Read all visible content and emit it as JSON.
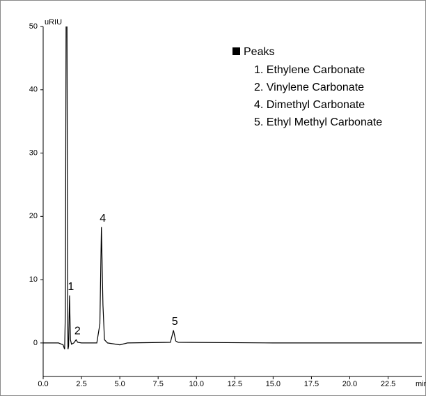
{
  "chart_data": {
    "type": "line",
    "y_label": "uRIU",
    "x_label": "min",
    "x": [
      0,
      1.0,
      1.3,
      1.4,
      1.45,
      1.5,
      1.55,
      1.6,
      1.62,
      1.66,
      1.72,
      1.78,
      1.85,
      2.0,
      2.15,
      2.25,
      2.5,
      3.5,
      3.7,
      3.8,
      3.9,
      4.0,
      4.2,
      5.0,
      5.5,
      8.3,
      8.5,
      8.65,
      8.8,
      12.0,
      15.0,
      20.0,
      24.7
    ],
    "series": [
      {
        "color": "#000000",
        "values": [
          0,
          0,
          -0.3,
          -1,
          5,
          55,
          55,
          5,
          -1,
          -0.5,
          7.5,
          0.5,
          -0.2,
          0,
          0.5,
          0.1,
          0,
          0,
          3,
          18.3,
          6,
          0.5,
          0,
          -0.3,
          0,
          0.1,
          2,
          0.3,
          0.1,
          0.05,
          0,
          0,
          0
        ]
      }
    ],
    "peaks": {
      "x": [
        1.72,
        2.15,
        3.8,
        8.5
      ],
      "labels": [
        "1",
        "2",
        "4",
        "5"
      ]
    },
    "legend": {
      "title": "Peaks",
      "items": [
        "1. Ethylene Carbonate",
        "2. Vinylene Carbonate",
        "4. Dimethyl Carbonate",
        "5. Ethyl Methyl Carbonate"
      ]
    },
    "xlim": [
      0,
      24.7
    ],
    "ylim": [
      -5.3,
      50
    ],
    "xticks": [
      {
        "value": 0,
        "label": "0.0"
      },
      {
        "value": 2.5,
        "label": "2.5"
      },
      {
        "value": 5,
        "label": "5.0"
      },
      {
        "value": 7.5,
        "label": "7.5"
      },
      {
        "value": 10,
        "label": "10.0"
      },
      {
        "value": 12.5,
        "label": "12.5"
      },
      {
        "value": 15,
        "label": "15.0"
      },
      {
        "value": 17.5,
        "label": "17.5"
      },
      {
        "value": 20,
        "label": "20.0"
      },
      {
        "value": 22.5,
        "label": "22.5"
      }
    ],
    "yticks": [
      0,
      10,
      20,
      30,
      40,
      50
    ]
  }
}
